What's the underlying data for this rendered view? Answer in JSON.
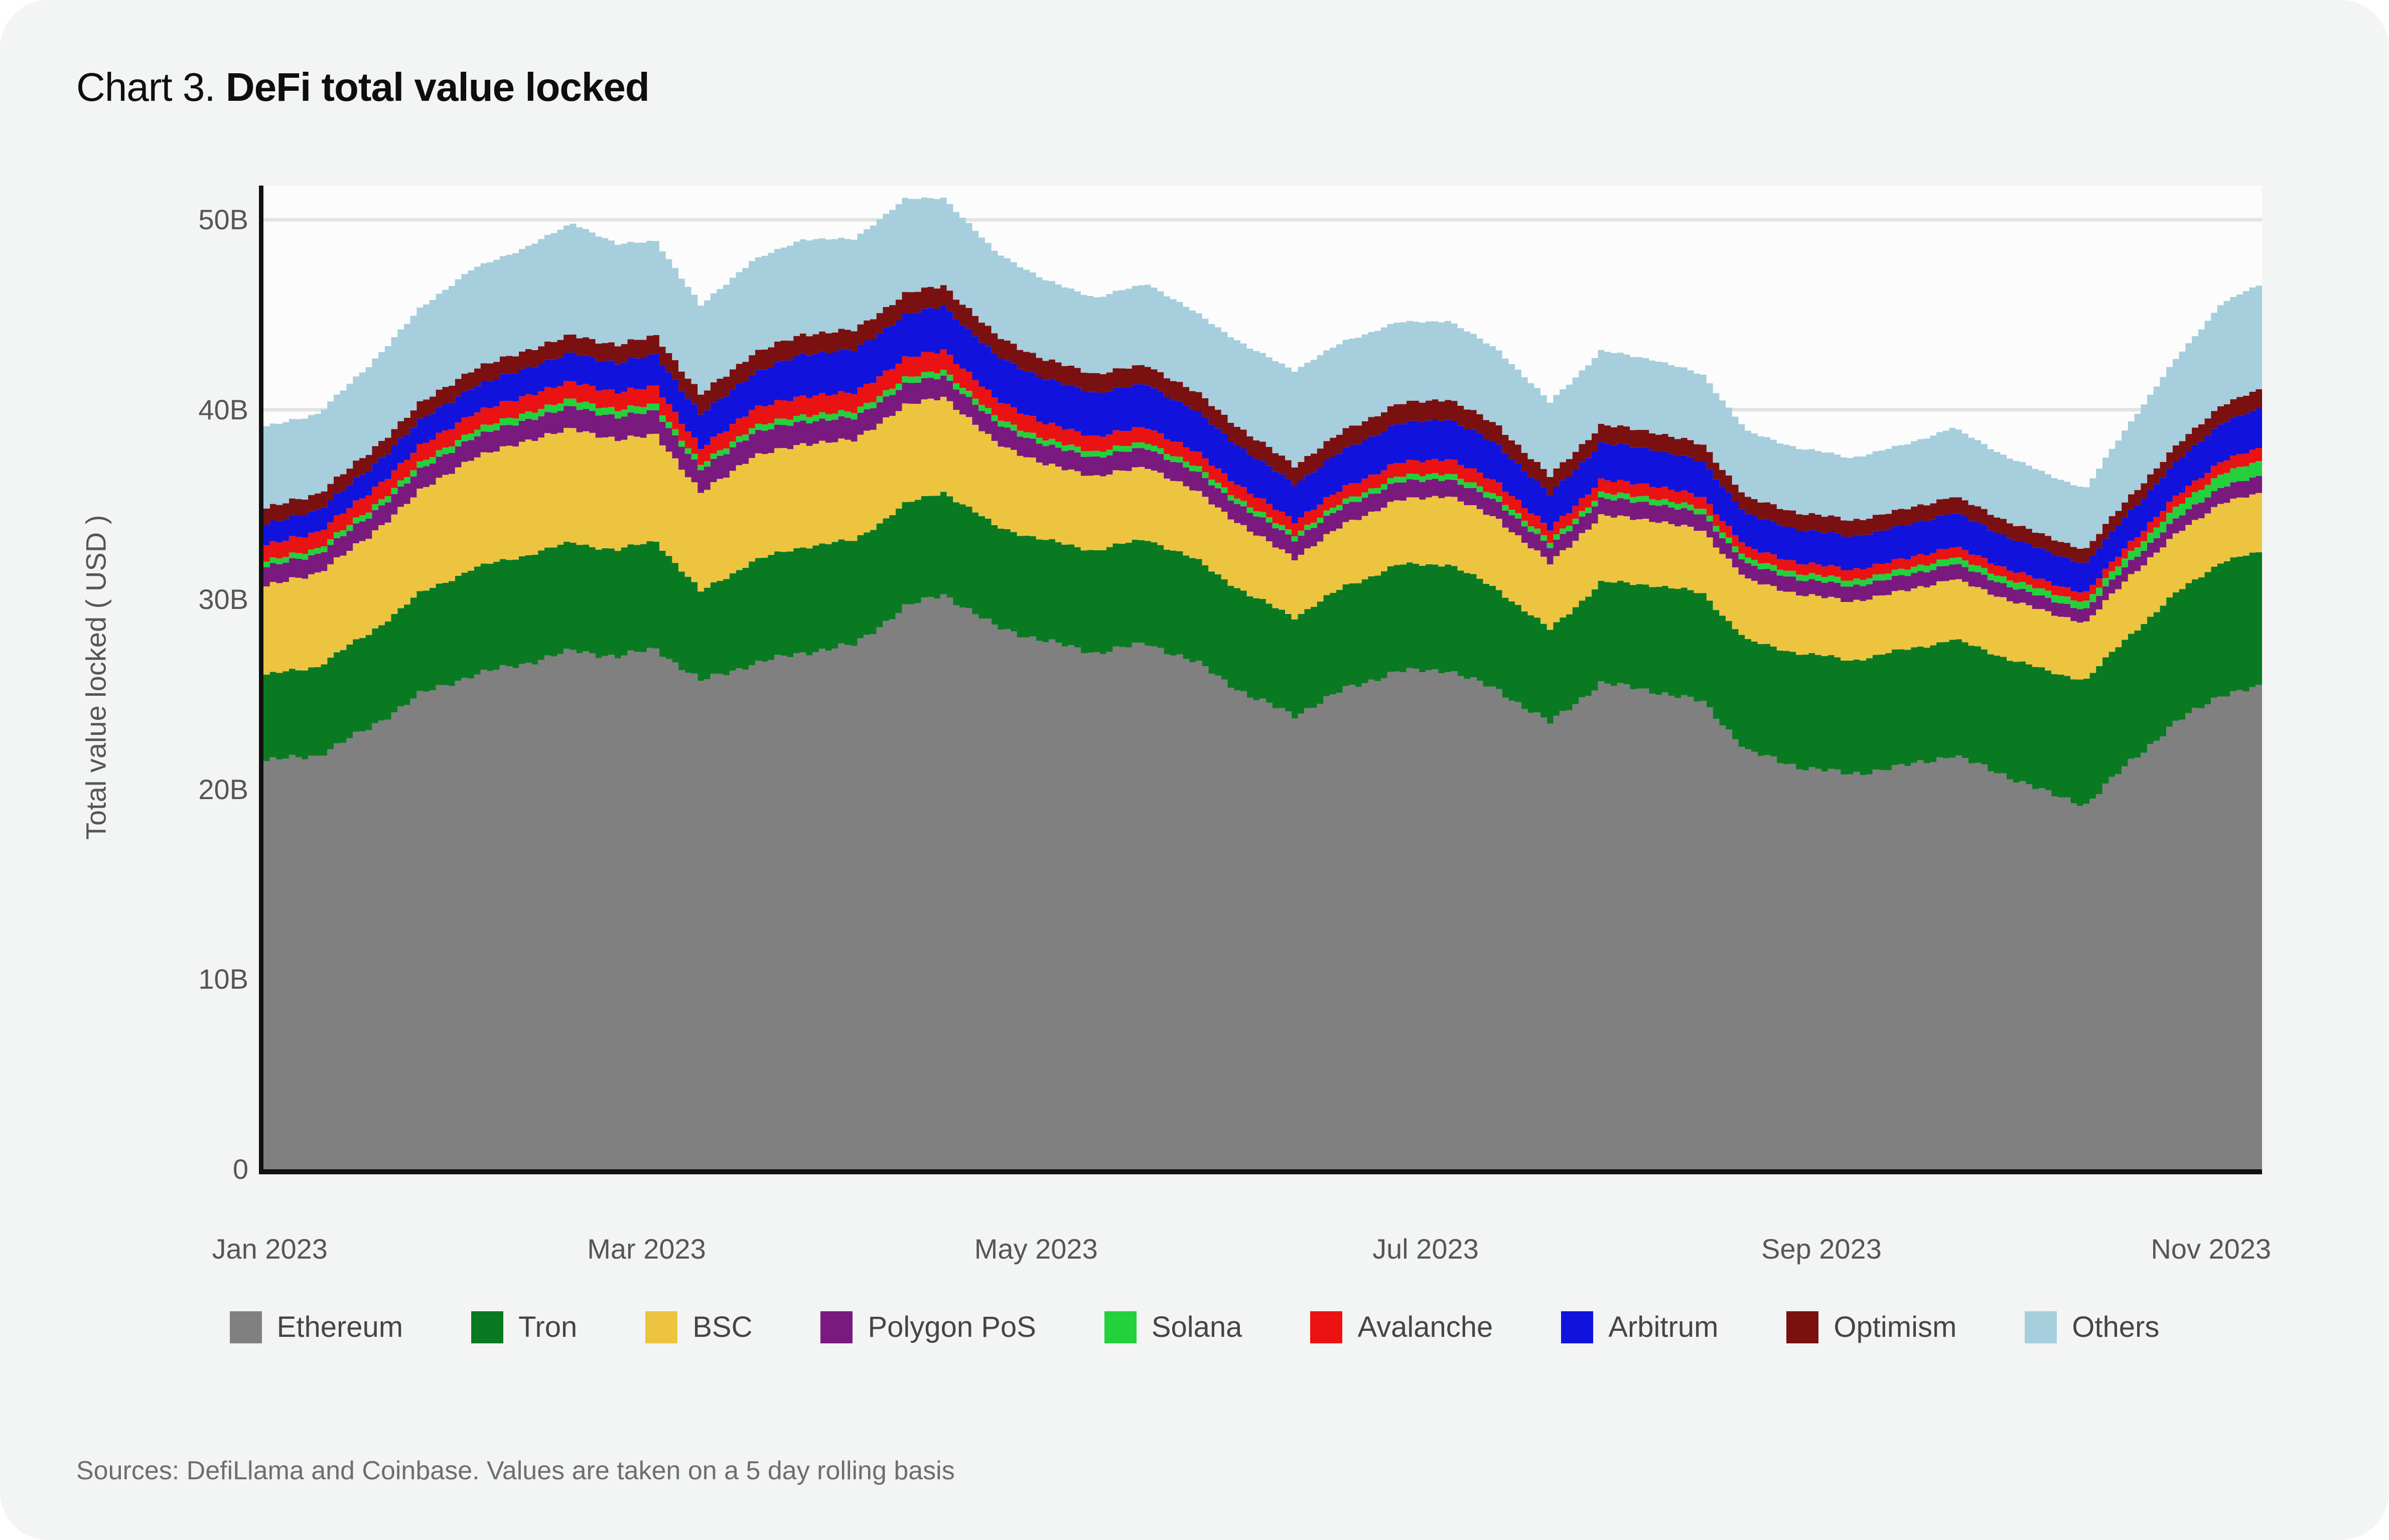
{
  "card": {
    "title_prefix": "Chart 3.",
    "title_main": "DeFi total value locked",
    "source": "Sources: DefiLlama and Coinbase. Values are taken on a 5 day rolling basis"
  },
  "chart_data": {
    "type": "area",
    "stacked": true,
    "title": "Chart 3. DeFi total value locked",
    "xlabel": "",
    "ylabel": "Total value locked ( USD )",
    "x_unit": "day_of_year_2023",
    "x_domain": [
      0,
      313
    ],
    "ylim": [
      0,
      51.8
    ],
    "grid": true,
    "legend_position": "bottom",
    "plot_bg": "#fcfcfc",
    "grid_color": "#e3e3e3",
    "axis_color": "#111111",
    "x_ticks": [
      {
        "day": 1,
        "label": "Jan 2023"
      },
      {
        "day": 60,
        "label": "Mar 2023"
      },
      {
        "day": 121,
        "label": "May 2023"
      },
      {
        "day": 182,
        "label": "Jul 2023"
      },
      {
        "day": 244,
        "label": "Sep 2023"
      },
      {
        "day": 305,
        "label": "Nov 2023"
      }
    ],
    "y_ticks": [
      {
        "v": 0,
        "label": "0"
      },
      {
        "v": 10,
        "label": "10B"
      },
      {
        "v": 20,
        "label": "20B"
      },
      {
        "v": 30,
        "label": "30B"
      },
      {
        "v": 40,
        "label": "40B"
      },
      {
        "v": 50,
        "label": "50B"
      }
    ],
    "control_days": [
      0,
      8,
      16,
      24,
      32,
      40,
      48,
      55,
      61,
      68,
      76,
      84,
      92,
      100,
      106,
      114,
      122,
      130,
      138,
      146,
      154,
      161,
      169,
      177,
      185,
      193,
      201,
      209,
      217,
      225,
      232,
      240,
      248,
      256,
      264,
      272,
      279,
      285,
      292,
      299,
      306,
      313
    ],
    "series": [
      {
        "name": "Ethereum",
        "color": "#808080",
        "values": [
          21.5,
          21.8,
          23.2,
          25.0,
          26.0,
          26.6,
          27.3,
          27.0,
          27.4,
          25.7,
          26.6,
          27.2,
          27.6,
          29.6,
          30.3,
          28.6,
          27.8,
          27.2,
          27.7,
          26.6,
          24.9,
          23.9,
          25.3,
          26.2,
          26.3,
          25.2,
          23.5,
          25.6,
          25.2,
          24.6,
          22.0,
          21.2,
          20.8,
          21.2,
          21.8,
          20.8,
          19.8,
          19.2,
          21.5,
          23.5,
          25.0,
          25.4
        ]
      },
      {
        "name": "Tron",
        "color": "#0a7a22",
        "values": [
          4.5,
          4.7,
          5.0,
          5.3,
          5.6,
          5.7,
          5.7,
          5.6,
          5.7,
          4.7,
          5.4,
          5.6,
          5.5,
          5.4,
          5.4,
          5.3,
          5.3,
          5.4,
          5.5,
          5.4,
          5.3,
          5.2,
          5.4,
          5.6,
          5.6,
          5.3,
          4.9,
          5.3,
          5.6,
          5.7,
          5.8,
          6.0,
          6.0,
          6.1,
          6.1,
          6.2,
          6.4,
          6.6,
          6.7,
          6.8,
          7.0,
          7.1
        ]
      },
      {
        "name": "BSC",
        "color": "#edc440",
        "values": [
          4.7,
          4.9,
          5.1,
          5.4,
          5.8,
          6.0,
          6.0,
          5.8,
          5.6,
          5.2,
          5.5,
          5.4,
          5.3,
          5.2,
          5.0,
          4.4,
          4.0,
          3.9,
          3.8,
          3.6,
          3.4,
          3.1,
          3.3,
          3.4,
          3.6,
          3.7,
          3.5,
          3.5,
          3.4,
          3.3,
          3.2,
          3.1,
          3.1,
          3.1,
          3.2,
          3.1,
          3.1,
          3.0,
          3.1,
          3.1,
          3.1,
          3.1
        ]
      },
      {
        "name": "Polygon PoS",
        "color": "#7a1a7e",
        "values": [
          1.0,
          1.0,
          1.05,
          1.1,
          1.1,
          1.1,
          1.15,
          1.2,
          1.25,
          1.2,
          1.25,
          1.2,
          1.15,
          1.1,
          1.1,
          1.05,
          1.0,
          1.0,
          1.0,
          1.0,
          1.0,
          1.0,
          0.95,
          0.95,
          0.9,
          0.9,
          0.85,
          0.9,
          0.9,
          0.85,
          0.8,
          0.8,
          0.8,
          0.8,
          0.8,
          0.75,
          0.7,
          0.7,
          0.75,
          0.8,
          0.85,
          0.9
        ]
      },
      {
        "name": "Solana",
        "color": "#22d13c",
        "values": [
          0.3,
          0.3,
          0.32,
          0.33,
          0.35,
          0.38,
          0.4,
          0.38,
          0.35,
          0.28,
          0.32,
          0.33,
          0.33,
          0.33,
          0.32,
          0.31,
          0.3,
          0.3,
          0.3,
          0.3,
          0.28,
          0.27,
          0.28,
          0.3,
          0.3,
          0.3,
          0.28,
          0.3,
          0.3,
          0.3,
          0.3,
          0.31,
          0.32,
          0.33,
          0.35,
          0.35,
          0.38,
          0.4,
          0.48,
          0.6,
          0.7,
          0.8
        ]
      },
      {
        "name": "Avalanche",
        "color": "#ea1212",
        "values": [
          0.85,
          0.87,
          0.9,
          0.92,
          0.9,
          0.9,
          0.92,
          0.92,
          0.95,
          0.85,
          0.95,
          1.0,
          1.0,
          1.05,
          1.05,
          0.95,
          0.85,
          0.8,
          0.8,
          0.75,
          0.72,
          0.68,
          0.7,
          0.72,
          0.75,
          0.72,
          0.65,
          0.68,
          0.65,
          0.62,
          0.58,
          0.55,
          0.55,
          0.55,
          0.55,
          0.52,
          0.5,
          0.48,
          0.52,
          0.58,
          0.65,
          0.7
        ]
      },
      {
        "name": "Arbitrum",
        "color": "#1212dd",
        "values": [
          1.1,
          1.15,
          1.25,
          1.35,
          1.4,
          1.45,
          1.5,
          1.55,
          1.65,
          1.8,
          1.85,
          2.2,
          2.25,
          2.3,
          2.3,
          2.3,
          2.35,
          2.3,
          2.25,
          2.15,
          2.05,
          1.95,
          2.0,
          2.05,
          2.1,
          2.0,
          1.85,
          1.95,
          1.9,
          1.85,
          1.75,
          1.75,
          1.75,
          1.75,
          1.8,
          1.7,
          1.6,
          1.55,
          1.65,
          1.8,
          2.0,
          2.1
        ]
      },
      {
        "name": "Optimism",
        "color": "#7a1010",
        "values": [
          0.85,
          0.86,
          0.88,
          0.9,
          0.92,
          0.92,
          0.95,
          0.95,
          1.0,
          1.05,
          1.05,
          1.05,
          1.05,
          1.1,
          1.1,
          1.05,
          1.0,
          1.0,
          1.0,
          1.0,
          0.98,
          0.98,
          1.0,
          1.05,
          1.05,
          1.0,
          0.95,
          0.95,
          0.92,
          0.9,
          0.88,
          0.88,
          0.85,
          0.85,
          0.85,
          0.82,
          0.78,
          0.75,
          0.8,
          0.85,
          0.95,
          1.0
        ]
      },
      {
        "name": "Others",
        "color": "#a6cedd",
        "values": [
          4.3,
          4.2,
          4.6,
          5.0,
          5.3,
          5.4,
          5.9,
          5.3,
          5.0,
          4.7,
          4.9,
          5.0,
          4.8,
          5.0,
          4.6,
          4.4,
          4.2,
          4.0,
          4.3,
          4.2,
          4.6,
          5.0,
          4.7,
          4.3,
          4.1,
          4.0,
          3.9,
          3.9,
          3.8,
          3.7,
          3.5,
          3.4,
          3.3,
          3.4,
          3.6,
          3.4,
          3.3,
          3.2,
          3.9,
          4.6,
          5.3,
          5.6
        ]
      }
    ]
  }
}
